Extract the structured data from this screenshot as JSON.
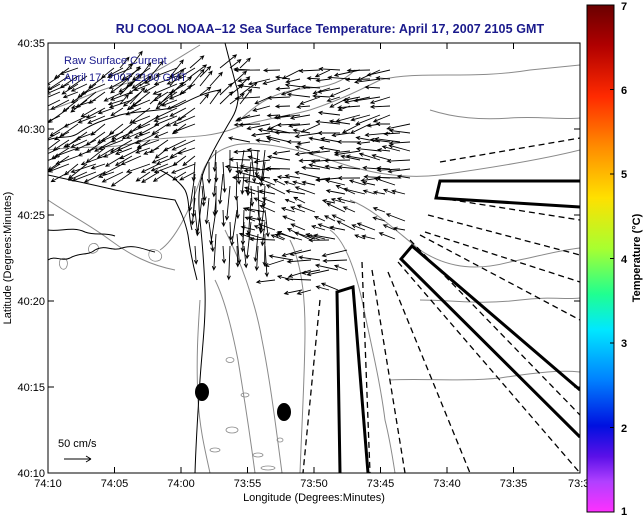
{
  "title": "RU COOL  NOAA–12  Sea Surface Temperature:  April 17, 2007 2105 GMT",
  "legend": {
    "line1": "Raw Surface Current",
    "line2": "April 17, 2007 2100 GMT",
    "scale_label": "50 cm/s"
  },
  "axes": {
    "xlabel": "Longitude (Degrees:Minutes)",
    "ylabel": "Latitude (Degrees:Minutes)",
    "xticks": [
      "74:10",
      "74:05",
      "74:00",
      "73:55",
      "73:50",
      "73:45",
      "73:40",
      "73:35",
      "73:3"
    ],
    "yticks": [
      "40:35",
      "40:30",
      "40:25",
      "40:20",
      "40:15",
      "40:10"
    ]
  },
  "colorbar": {
    "label": "Temperature (°C)",
    "ticks": [
      "7",
      "6",
      "5",
      "4",
      "3",
      "2",
      "1"
    ],
    "colors": [
      "#7a0000",
      "#c00000",
      "#ff3000",
      "#ff9000",
      "#ffe000",
      "#90ff30",
      "#00ffb0",
      "#00d0ff",
      "#0060ff",
      "#0000d0",
      "#7000ff",
      "#ff40ff"
    ]
  }
}
